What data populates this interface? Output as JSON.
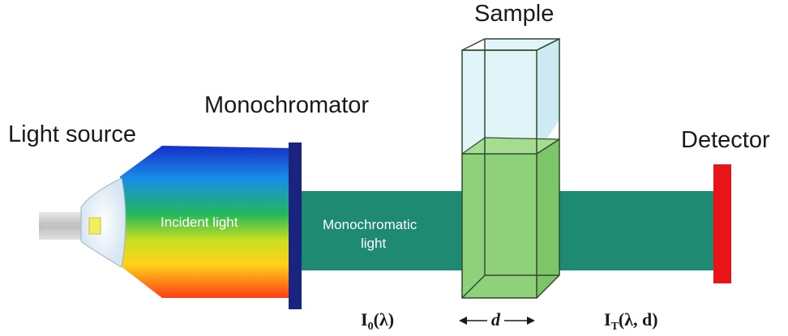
{
  "labels": {
    "light_source": "Light source",
    "monochromator": "Monochromator",
    "sample": "Sample",
    "detector": "Detector",
    "incident_light": "Incident light",
    "monochromatic_line1": "Monochromatic",
    "monochromatic_line2": "light"
  },
  "annotations": {
    "i0_base": "I",
    "i0_sub": "0",
    "i0_arg": "(λ)",
    "d_symbol": "d",
    "it_base": "I",
    "it_sub": "T",
    "it_arg": "(λ, d)"
  },
  "colors": {
    "beam": "#1e8a72",
    "monochromator": "#1a237e",
    "detector": "#e8141a",
    "cuvette_glass": "#dff3f8",
    "cuvette_liquid": "#8fd07a",
    "cuvette_edge": "#2e4a2e"
  },
  "icons": {
    "bulb": "light-bulb-icon"
  }
}
